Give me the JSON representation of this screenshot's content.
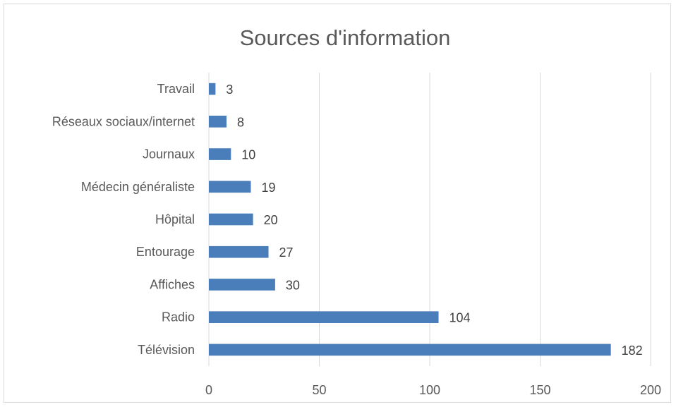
{
  "chart_data": {
    "type": "bar",
    "orientation": "horizontal",
    "title": "Sources d'information",
    "categories": [
      "Travail",
      "Réseaux sociaux/internet",
      "Journaux",
      "Médecin généraliste",
      "Hôpital",
      "Entourage",
      "Affiches",
      "Radio",
      "Télévision"
    ],
    "values": [
      3,
      8,
      10,
      19,
      20,
      27,
      30,
      104,
      182
    ],
    "xlim": [
      0,
      200
    ],
    "xticks": [
      "0",
      "50",
      "100",
      "150",
      "200"
    ],
    "grid": true,
    "legend": "none",
    "bar_color": "#4a7ebb"
  }
}
